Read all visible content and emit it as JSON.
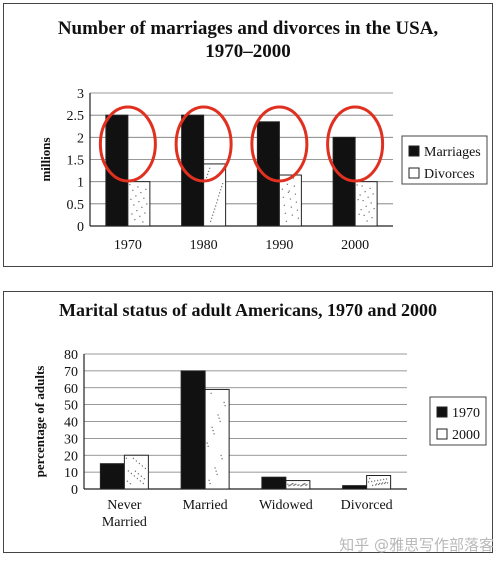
{
  "chart_data": [
    {
      "type": "bar",
      "title": "Number of marriages and divorces in the USA, 1970–2000",
      "title_line1": "Number of marriages and divorces in the USA,",
      "title_line2": "1970–2000",
      "xlabel": "",
      "ylabel": "millions",
      "categories": [
        "1970",
        "1980",
        "1990",
        "2000"
      ],
      "series": [
        {
          "name": "Marriages",
          "values": [
            2.5,
            2.5,
            2.35,
            2.0
          ],
          "color": "#111111"
        },
        {
          "name": "Divorces",
          "values": [
            1.0,
            1.4,
            1.15,
            1.0
          ],
          "color": "#ffffff"
        }
      ],
      "ylim": [
        0,
        3
      ],
      "yticks": [
        "0",
        "0.5",
        "1",
        "1.5",
        "2",
        "2.5",
        "3"
      ],
      "grid": true,
      "legend": "right",
      "annotations": "red circles around each year's bar pair",
      "annotation_color": "#e03020"
    },
    {
      "type": "bar",
      "title": "Marital status of adult Americans, 1970 and 2000",
      "xlabel": "",
      "ylabel": "percentage of adults",
      "categories": [
        "Never Married",
        "Married",
        "Widowed",
        "Divorced"
      ],
      "category_lines": [
        [
          "Never",
          "Married"
        ],
        [
          "Married"
        ],
        [
          "Widowed"
        ],
        [
          "Divorced"
        ]
      ],
      "series": [
        {
          "name": "1970",
          "values": [
            15,
            70,
            7,
            2
          ],
          "color": "#111111"
        },
        {
          "name": "2000",
          "values": [
            20,
            59,
            5,
            8
          ],
          "color": "#ffffff"
        }
      ],
      "ylim": [
        0,
        80
      ],
      "yticks": [
        "0",
        "10",
        "20",
        "30",
        "40",
        "50",
        "60",
        "70",
        "80"
      ],
      "grid": true,
      "legend": "right"
    }
  ],
  "watermark": "知乎 @雅思写作部落客"
}
